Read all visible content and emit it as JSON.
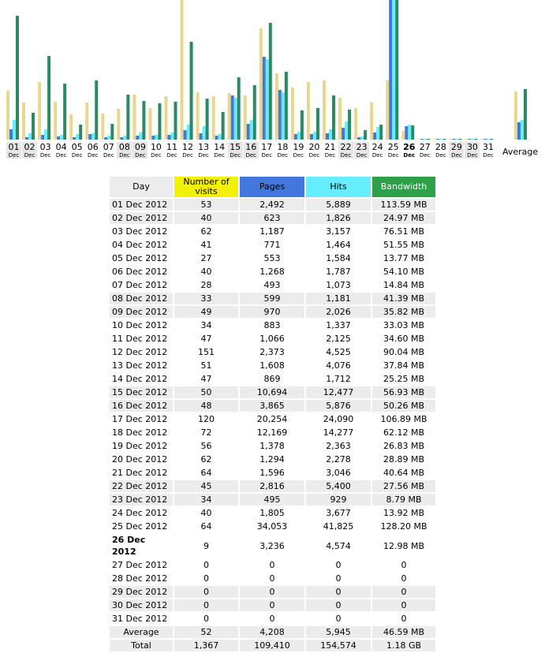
{
  "chart_data": {
    "type": "bar",
    "series_colors": {
      "visits": "#e8d88c",
      "pages": "#4477dd",
      "hits": "#66eeff",
      "bandwidth": "#2b8a63"
    },
    "days": [
      {
        "n": "01",
        "mon": "Dec",
        "weekend": true,
        "visits": 53,
        "pages": 2492,
        "hits": 5889,
        "bw": 113.59
      },
      {
        "n": "02",
        "mon": "Dec",
        "weekend": true,
        "visits": 40,
        "pages": 623,
        "hits": 1826,
        "bw": 24.97
      },
      {
        "n": "03",
        "mon": "Dec",
        "weekend": false,
        "visits": 62,
        "pages": 1187,
        "hits": 3157,
        "bw": 76.51
      },
      {
        "n": "04",
        "mon": "Dec",
        "weekend": false,
        "visits": 41,
        "pages": 771,
        "hits": 1464,
        "bw": 51.55
      },
      {
        "n": "05",
        "mon": "Dec",
        "weekend": false,
        "visits": 27,
        "pages": 553,
        "hits": 1584,
        "bw": 13.77
      },
      {
        "n": "06",
        "mon": "Dec",
        "weekend": false,
        "visits": 40,
        "pages": 1268,
        "hits": 1787,
        "bw": 54.1
      },
      {
        "n": "07",
        "mon": "Dec",
        "weekend": false,
        "visits": 28,
        "pages": 493,
        "hits": 1073,
        "bw": 14.84
      },
      {
        "n": "08",
        "mon": "Dec",
        "weekend": true,
        "visits": 33,
        "pages": 599,
        "hits": 1181,
        "bw": 41.39
      },
      {
        "n": "09",
        "mon": "Dec",
        "weekend": true,
        "visits": 49,
        "pages": 970,
        "hits": 2026,
        "bw": 35.82
      },
      {
        "n": "10",
        "mon": "Dec",
        "weekend": false,
        "visits": 34,
        "pages": 883,
        "hits": 1337,
        "bw": 33.03
      },
      {
        "n": "11",
        "mon": "Dec",
        "weekend": false,
        "visits": 47,
        "pages": 1066,
        "hits": 2125,
        "bw": 34.6
      },
      {
        "n": "12",
        "mon": "Dec",
        "weekend": false,
        "visits": 151,
        "pages": 2373,
        "hits": 4525,
        "bw": 90.04
      },
      {
        "n": "13",
        "mon": "Dec",
        "weekend": false,
        "visits": 51,
        "pages": 1608,
        "hits": 4076,
        "bw": 37.84
      },
      {
        "n": "14",
        "mon": "Dec",
        "weekend": false,
        "visits": 47,
        "pages": 869,
        "hits": 1712,
        "bw": 25.25
      },
      {
        "n": "15",
        "mon": "Dec",
        "weekend": true,
        "visits": 50,
        "pages": 10694,
        "hits": 12477,
        "bw": 56.93
      },
      {
        "n": "16",
        "mon": "Dec",
        "weekend": true,
        "visits": 48,
        "pages": 3865,
        "hits": 5876,
        "bw": 50.26
      },
      {
        "n": "17",
        "mon": "Dec",
        "weekend": false,
        "visits": 120,
        "pages": 20254,
        "hits": 24090,
        "bw": 106.89
      },
      {
        "n": "18",
        "mon": "Dec",
        "weekend": false,
        "visits": 72,
        "pages": 12169,
        "hits": 14277,
        "bw": 62.12
      },
      {
        "n": "19",
        "mon": "Dec",
        "weekend": false,
        "visits": 56,
        "pages": 1378,
        "hits": 2363,
        "bw": 26.83
      },
      {
        "n": "20",
        "mon": "Dec",
        "weekend": false,
        "visits": 62,
        "pages": 1294,
        "hits": 2278,
        "bw": 28.89
      },
      {
        "n": "21",
        "mon": "Dec",
        "weekend": false,
        "visits": 64,
        "pages": 1596,
        "hits": 3046,
        "bw": 40.64
      },
      {
        "n": "22",
        "mon": "Dec",
        "weekend": true,
        "visits": 45,
        "pages": 2816,
        "hits": 5400,
        "bw": 27.56
      },
      {
        "n": "23",
        "mon": "Dec",
        "weekend": true,
        "visits": 34,
        "pages": 495,
        "hits": 929,
        "bw": 8.79
      },
      {
        "n": "24",
        "mon": "Dec",
        "weekend": false,
        "visits": 40,
        "pages": 1805,
        "hits": 3677,
        "bw": 13.92
      },
      {
        "n": "25",
        "mon": "Dec",
        "weekend": false,
        "visits": 64,
        "pages": 34053,
        "hits": 41825,
        "bw": 128.2
      },
      {
        "n": "26",
        "mon": "Dec",
        "weekend": false,
        "today": true,
        "visits": 9,
        "pages": 3236,
        "hits": 4574,
        "bw": 12.98
      },
      {
        "n": "27",
        "mon": "Dec",
        "weekend": false,
        "visits": 0,
        "pages": 0,
        "hits": 0,
        "bw": 0
      },
      {
        "n": "28",
        "mon": "Dec",
        "weekend": false,
        "visits": 0,
        "pages": 0,
        "hits": 0,
        "bw": 0
      },
      {
        "n": "29",
        "mon": "Dec",
        "weekend": true,
        "visits": 0,
        "pages": 0,
        "hits": 0,
        "bw": 0
      },
      {
        "n": "30",
        "mon": "Dec",
        "weekend": true,
        "visits": 0,
        "pages": 0,
        "hits": 0,
        "bw": 0
      },
      {
        "n": "31",
        "mon": "Dec",
        "weekend": false,
        "visits": 0,
        "pages": 0,
        "hits": 0,
        "bw": 0
      }
    ],
    "average": {
      "label": "Average",
      "visits": 52,
      "pages": 4208,
      "hits": 5945,
      "bw": 46.59
    }
  },
  "table": {
    "headers": {
      "day": "Day",
      "visits": "Number of visits",
      "pages": "Pages",
      "hits": "Hits",
      "bandwidth": "Bandwidth"
    },
    "rows": [
      {
        "day": "01 Dec 2012",
        "visits": "53",
        "pages": "2,492",
        "hits": "5,889",
        "bw": "113.59 MB",
        "weekend": true
      },
      {
        "day": "02 Dec 2012",
        "visits": "40",
        "pages": "623",
        "hits": "1,826",
        "bw": "24.97 MB",
        "weekend": true
      },
      {
        "day": "03 Dec 2012",
        "visits": "62",
        "pages": "1,187",
        "hits": "3,157",
        "bw": "76.51 MB"
      },
      {
        "day": "04 Dec 2012",
        "visits": "41",
        "pages": "771",
        "hits": "1,464",
        "bw": "51.55 MB"
      },
      {
        "day": "05 Dec 2012",
        "visits": "27",
        "pages": "553",
        "hits": "1,584",
        "bw": "13.77 MB"
      },
      {
        "day": "06 Dec 2012",
        "visits": "40",
        "pages": "1,268",
        "hits": "1,787",
        "bw": "54.10 MB"
      },
      {
        "day": "07 Dec 2012",
        "visits": "28",
        "pages": "493",
        "hits": "1,073",
        "bw": "14.84 MB"
      },
      {
        "day": "08 Dec 2012",
        "visits": "33",
        "pages": "599",
        "hits": "1,181",
        "bw": "41.39 MB",
        "weekend": true
      },
      {
        "day": "09 Dec 2012",
        "visits": "49",
        "pages": "970",
        "hits": "2,026",
        "bw": "35.82 MB",
        "weekend": true
      },
      {
        "day": "10 Dec 2012",
        "visits": "34",
        "pages": "883",
        "hits": "1,337",
        "bw": "33.03 MB"
      },
      {
        "day": "11 Dec 2012",
        "visits": "47",
        "pages": "1,066",
        "hits": "2,125",
        "bw": "34.60 MB"
      },
      {
        "day": "12 Dec 2012",
        "visits": "151",
        "pages": "2,373",
        "hits": "4,525",
        "bw": "90.04 MB"
      },
      {
        "day": "13 Dec 2012",
        "visits": "51",
        "pages": "1,608",
        "hits": "4,076",
        "bw": "37.84 MB"
      },
      {
        "day": "14 Dec 2012",
        "visits": "47",
        "pages": "869",
        "hits": "1,712",
        "bw": "25.25 MB"
      },
      {
        "day": "15 Dec 2012",
        "visits": "50",
        "pages": "10,694",
        "hits": "12,477",
        "bw": "56.93 MB",
        "weekend": true
      },
      {
        "day": "16 Dec 2012",
        "visits": "48",
        "pages": "3,865",
        "hits": "5,876",
        "bw": "50.26 MB",
        "weekend": true
      },
      {
        "day": "17 Dec 2012",
        "visits": "120",
        "pages": "20,254",
        "hits": "24,090",
        "bw": "106.89 MB"
      },
      {
        "day": "18 Dec 2012",
        "visits": "72",
        "pages": "12,169",
        "hits": "14,277",
        "bw": "62.12 MB"
      },
      {
        "day": "19 Dec 2012",
        "visits": "56",
        "pages": "1,378",
        "hits": "2,363",
        "bw": "26.83 MB"
      },
      {
        "day": "20 Dec 2012",
        "visits": "62",
        "pages": "1,294",
        "hits": "2,278",
        "bw": "28.89 MB"
      },
      {
        "day": "21 Dec 2012",
        "visits": "64",
        "pages": "1,596",
        "hits": "3,046",
        "bw": "40.64 MB"
      },
      {
        "day": "22 Dec 2012",
        "visits": "45",
        "pages": "2,816",
        "hits": "5,400",
        "bw": "27.56 MB",
        "weekend": true
      },
      {
        "day": "23 Dec 2012",
        "visits": "34",
        "pages": "495",
        "hits": "929",
        "bw": "8.79 MB",
        "weekend": true
      },
      {
        "day": "24 Dec 2012",
        "visits": "40",
        "pages": "1,805",
        "hits": "3,677",
        "bw": "13.92 MB"
      },
      {
        "day": "25 Dec 2012",
        "visits": "64",
        "pages": "34,053",
        "hits": "41,825",
        "bw": "128.20 MB"
      },
      {
        "day": "26 Dec 2012",
        "visits": "9",
        "pages": "3,236",
        "hits": "4,574",
        "bw": "12.98 MB",
        "today": true
      },
      {
        "day": "27 Dec 2012",
        "visits": "0",
        "pages": "0",
        "hits": "0",
        "bw": "0"
      },
      {
        "day": "28 Dec 2012",
        "visits": "0",
        "pages": "0",
        "hits": "0",
        "bw": "0"
      },
      {
        "day": "29 Dec 2012",
        "visits": "0",
        "pages": "0",
        "hits": "0",
        "bw": "0",
        "weekend": true
      },
      {
        "day": "30 Dec 2012",
        "visits": "0",
        "pages": "0",
        "hits": "0",
        "bw": "0",
        "weekend": true
      },
      {
        "day": "31 Dec 2012",
        "visits": "0",
        "pages": "0",
        "hits": "0",
        "bw": "0"
      }
    ],
    "average": {
      "label": "Average",
      "visits": "52",
      "pages": "4,208",
      "hits": "5,945",
      "bw": "46.59 MB"
    },
    "total": {
      "label": "Total",
      "visits": "1,367",
      "pages": "109,410",
      "hits": "154,574",
      "bw": "1.18 GB"
    }
  }
}
